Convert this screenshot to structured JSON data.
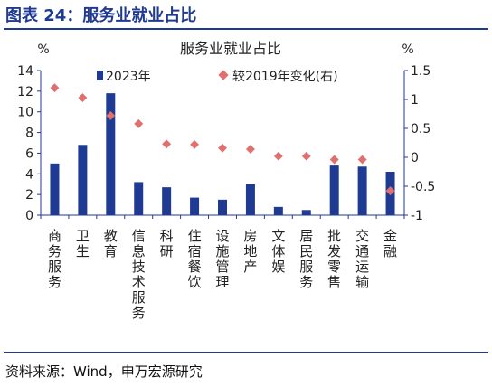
{
  "figure": {
    "title": "图表 24：服务业就业占比",
    "source": "资料来源：Wind，申万宏源研究"
  },
  "colors": {
    "bar": "#1f3a93",
    "marker": "#e07070",
    "axis": "#1f3a93",
    "rule": "#1f3a93"
  },
  "chart_data": {
    "type": "bar",
    "title": "服务业就业占比",
    "ylabel_left": "%",
    "ylabel_right": "%",
    "ylim_left": [
      0,
      14
    ],
    "yticks_left": [
      "0",
      "2",
      "4",
      "6",
      "8",
      "10",
      "12",
      "14"
    ],
    "ylim_right": [
      -1,
      1.5
    ],
    "yticks_right": [
      "-1",
      "-0.5",
      "0",
      "0.5",
      "1",
      "1.5"
    ],
    "grid": false,
    "legend_position": "top",
    "categories": [
      "商务服务",
      "卫生",
      "教育",
      "信息技术服务",
      "科研",
      "住宿餐饮",
      "设施管理",
      "房地产",
      "文体娱",
      "居民服务",
      "批发零售",
      "交通运输",
      "金融"
    ],
    "series": [
      {
        "name": "2023年",
        "type": "bar",
        "axis": "left",
        "values": [
          5.0,
          6.8,
          11.8,
          3.2,
          2.7,
          1.7,
          1.5,
          3.0,
          0.8,
          0.5,
          4.8,
          4.7,
          4.2
        ]
      },
      {
        "name": "较2019年变化(右)",
        "type": "scatter",
        "axis": "right",
        "values": [
          1.2,
          1.03,
          0.72,
          0.58,
          0.23,
          0.22,
          0.16,
          0.14,
          0.02,
          0.02,
          -0.04,
          -0.04,
          -0.58
        ]
      }
    ]
  }
}
